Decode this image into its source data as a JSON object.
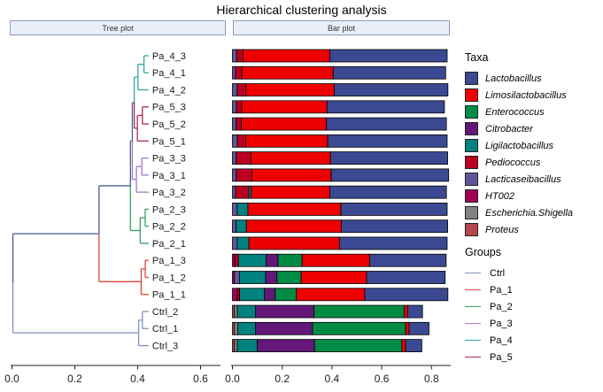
{
  "title": "Hierarchical clustering analysis",
  "panels": {
    "tree_label": "Tree plot",
    "bar_label": "Bar plot"
  },
  "legend": {
    "taxa_title": "Taxa",
    "groups_title": "Groups",
    "taxa": [
      {
        "key": "lactobacillus",
        "label": "Lactobacillus"
      },
      {
        "key": "limosilactobacillus",
        "label": "Limosilactobacillus"
      },
      {
        "key": "enterococcus",
        "label": "Enterococcus"
      },
      {
        "key": "citrobacter",
        "label": "Citrobacter"
      },
      {
        "key": "ligilactobacillus",
        "label": "Ligilactobacillus"
      },
      {
        "key": "pediococcus",
        "label": "Pediococcus"
      },
      {
        "key": "lacticaseibacillus",
        "label": "Lacticaseibacillus"
      },
      {
        "key": "ht002",
        "label": "HT002"
      },
      {
        "key": "escherichia_shigella",
        "label": "Escherichia.Shigella"
      },
      {
        "key": "proteus",
        "label": "Proteus"
      }
    ],
    "groups": [
      {
        "key": "Ctrl",
        "label": "Ctrl"
      },
      {
        "key": "Pa_1",
        "label": "Pa_1"
      },
      {
        "key": "Pa_2",
        "label": "Pa_2"
      },
      {
        "key": "Pa_3",
        "label": "Pa_3"
      },
      {
        "key": "Pa_4",
        "label": "Pa_4"
      },
      {
        "key": "Pa_5",
        "label": "Pa_5"
      }
    ]
  },
  "colors": {
    "spine": "#4A5B92",
    "axis": "#222222",
    "taxa": {
      "lactobacillus": "#3B4992",
      "limosilactobacillus": "#EE0000",
      "enterococcus": "#008B45",
      "citrobacter": "#631879",
      "ligilactobacillus": "#008280",
      "pediococcus": "#BB0021",
      "lacticaseibacillus": "#5F559B",
      "ht002": "#A20056",
      "escherichia_shigella": "#808180",
      "proteus": "#B2474E"
    },
    "groups": {
      "Ctrl": "#8490BE",
      "Pa_1": "#E04438",
      "Pa_2": "#33A05F",
      "Pa_3": "#A678C8",
      "Pa_4": "#2FA89A",
      "Pa_5": "#AE2950"
    }
  },
  "chart_data": [
    {
      "type": "dendrogram",
      "panel": "Tree plot",
      "orientation": "leaves-right",
      "axis": {
        "ticks": [
          "0.0",
          "0.2",
          "0.4",
          "0.6"
        ],
        "range": [
          0,
          0.66
        ]
      },
      "leaf_depth": 0.435,
      "leaves_top_to_bottom": [
        "Pa_4_3",
        "Pa_4_1",
        "Pa_4_2",
        "Pa_5_3",
        "Pa_5_2",
        "Pa_5_1",
        "Pa_3_3",
        "Pa_3_1",
        "Pa_3_2",
        "Pa_2_3",
        "Pa_2_2",
        "Pa_2_1",
        "Pa_1_3",
        "Pa_1_2",
        "Pa_1_1",
        "Ctrl_2",
        "Ctrl_1",
        "Ctrl_3"
      ],
      "root": {
        "h": 0.003,
        "children": [
          {
            "h": 0.277,
            "children": [
              {
                "h": 0.377,
                "children": [
                  {
                    "h": 0.383,
                    "children": [
                      {
                        "h": 0.389,
                        "children": [
                          {
                            "h": 0.401,
                            "group": "Pa_4",
                            "children": [
                              {
                                "h": 0.42,
                                "group": "Pa_4",
                                "children": [
                                  {
                                    "leaf": "Pa_4_3",
                                    "group": "Pa_4"
                                  },
                                  {
                                    "leaf": "Pa_4_1",
                                    "group": "Pa_4"
                                  }
                                ]
                              },
                              {
                                "leaf": "Pa_4_2",
                                "group": "Pa_4"
                              }
                            ]
                          },
                          {
                            "h": 0.399,
                            "group": "Pa_5",
                            "children": [
                              {
                                "h": 0.415,
                                "group": "Pa_5",
                                "children": [
                                  {
                                    "leaf": "Pa_5_3",
                                    "group": "Pa_5"
                                  },
                                  {
                                    "leaf": "Pa_5_2",
                                    "group": "Pa_5"
                                  }
                                ]
                              },
                              {
                                "leaf": "Pa_5_1",
                                "group": "Pa_5"
                              }
                            ]
                          }
                        ]
                      },
                      {
                        "h": 0.396,
                        "group": "Pa_3",
                        "children": [
                          {
                            "h": 0.413,
                            "group": "Pa_3",
                            "children": [
                              {
                                "leaf": "Pa_3_3",
                                "group": "Pa_3"
                              },
                              {
                                "leaf": "Pa_3_1",
                                "group": "Pa_3"
                              }
                            ]
                          },
                          {
                            "leaf": "Pa_3_2",
                            "group": "Pa_3"
                          }
                        ]
                      }
                    ]
                  },
                  {
                    "h": 0.408,
                    "group": "Pa_2",
                    "children": [
                      {
                        "h": 0.424,
                        "group": "Pa_2",
                        "children": [
                          {
                            "leaf": "Pa_2_3",
                            "group": "Pa_2"
                          },
                          {
                            "leaf": "Pa_2_2",
                            "group": "Pa_2"
                          }
                        ]
                      },
                      {
                        "leaf": "Pa_2_1",
                        "group": "Pa_2"
                      }
                    ]
                  }
                ]
              },
              {
                "h": 0.411,
                "group": "Pa_1",
                "children": [
                  {
                    "h": 0.424,
                    "group": "Pa_1",
                    "children": [
                      {
                        "leaf": "Pa_1_3",
                        "group": "Pa_1"
                      },
                      {
                        "leaf": "Pa_1_2",
                        "group": "Pa_1"
                      }
                    ]
                  },
                  {
                    "leaf": "Pa_1_1",
                    "group": "Pa_1"
                  }
                ]
              }
            ]
          },
          {
            "h": 0.403,
            "group": "Ctrl",
            "children": [
              {
                "h": 0.415,
                "group": "Ctrl",
                "children": [
                  {
                    "leaf": "Ctrl_2",
                    "group": "Ctrl"
                  },
                  {
                    "leaf": "Ctrl_1",
                    "group": "Ctrl"
                  }
                ]
              },
              {
                "leaf": "Ctrl_3",
                "group": "Ctrl"
              }
            ]
          }
        ]
      }
    },
    {
      "type": "bar",
      "panel": "Bar plot",
      "stacked": true,
      "xlabel": "",
      "axis": {
        "ticks": [
          "0.0",
          "0.2",
          "0.4",
          "0.6",
          "0.8"
        ],
        "range": [
          0,
          0.88
        ]
      },
      "stack_order": [
        "proteus",
        "escherichia_shigella",
        "ht002",
        "lacticaseibacillus",
        "pediococcus",
        "ligilactobacillus",
        "citrobacter",
        "enterococcus",
        "limosilactobacillus",
        "lactobacillus"
      ],
      "samples": [
        {
          "name": "Pa_4_3",
          "group": "Pa_4",
          "values": {
            "lacticaseibacillus": 0.017,
            "pediococcus": 0.025,
            "limosilactobacillus": 0.349,
            "lactobacillus": 0.472
          }
        },
        {
          "name": "Pa_4_1",
          "group": "Pa_4",
          "values": {
            "lacticaseibacillus": 0.012,
            "pediococcus": 0.026,
            "limosilactobacillus": 0.367,
            "lactobacillus": 0.452
          }
        },
        {
          "name": "Pa_4_2",
          "group": "Pa_4",
          "values": {
            "lacticaseibacillus": 0.019,
            "pediococcus": 0.035,
            "limosilactobacillus": 0.355,
            "lactobacillus": 0.457
          }
        },
        {
          "name": "Pa_5_3",
          "group": "Pa_5",
          "values": {
            "lacticaseibacillus": 0.016,
            "pediococcus": 0.021,
            "limosilactobacillus": 0.343,
            "lactobacillus": 0.472
          }
        },
        {
          "name": "Pa_5_2",
          "group": "Pa_5",
          "values": {
            "lacticaseibacillus": 0.015,
            "pediococcus": 0.021,
            "limosilactobacillus": 0.342,
            "lactobacillus": 0.482
          }
        },
        {
          "name": "Pa_5_1",
          "group": "Pa_5",
          "values": {
            "lacticaseibacillus": 0.02,
            "pediococcus": 0.033,
            "limosilactobacillus": 0.33,
            "lactobacillus": 0.48
          }
        },
        {
          "name": "Pa_3_3",
          "group": "Pa_3",
          "values": {
            "lacticaseibacillus": 0.015,
            "pediococcus": 0.059,
            "limosilactobacillus": 0.32,
            "lactobacillus": 0.471
          }
        },
        {
          "name": "Pa_3_1",
          "group": "Pa_3",
          "values": {
            "lacticaseibacillus": 0.015,
            "pediococcus": 0.063,
            "limosilactobacillus": 0.319,
            "lactobacillus": 0.472
          }
        },
        {
          "name": "Pa_3_2",
          "group": "Pa_3",
          "values": {
            "lacticaseibacillus": 0.012,
            "pediococcus": 0.054,
            "ligilactobacillus": 0.009,
            "limosilactobacillus": 0.316,
            "lactobacillus": 0.469
          }
        },
        {
          "name": "Pa_2_3",
          "group": "Pa_2",
          "values": {
            "lacticaseibacillus": 0.019,
            "ligilactobacillus": 0.043,
            "limosilactobacillus": 0.374,
            "lactobacillus": 0.427
          }
        },
        {
          "name": "Pa_2_2",
          "group": "Pa_2",
          "values": {
            "lacticaseibacillus": 0.015,
            "ligilactobacillus": 0.041,
            "limosilactobacillus": 0.382,
            "lactobacillus": 0.427
          }
        },
        {
          "name": "Pa_2_1",
          "group": "Pa_2",
          "values": {
            "lacticaseibacillus": 0.019,
            "ligilactobacillus": 0.047,
            "limosilactobacillus": 0.364,
            "lactobacillus": 0.433
          }
        },
        {
          "name": "Pa_1_3",
          "group": "Pa_1",
          "values": {
            "ht002": 0.01,
            "pediococcus": 0.014,
            "ligilactobacillus": 0.112,
            "citrobacter": 0.047,
            "enterococcus": 0.097,
            "limosilactobacillus": 0.271,
            "lactobacillus": 0.308
          }
        },
        {
          "name": "Pa_1_2",
          "group": "Pa_1",
          "values": {
            "ht002": 0.008,
            "lacticaseibacillus": 0.021,
            "ligilactobacillus": 0.104,
            "citrobacter": 0.046,
            "enterococcus": 0.097,
            "limosilactobacillus": 0.263,
            "lactobacillus": 0.316
          }
        },
        {
          "name": "Pa_1_1",
          "group": "Pa_1",
          "values": {
            "ht002": 0.02,
            "pediococcus": 0.009,
            "ligilactobacillus": 0.1,
            "citrobacter": 0.043,
            "enterococcus": 0.085,
            "limosilactobacillus": 0.275,
            "lactobacillus": 0.334
          }
        },
        {
          "name": "Ctrl_2",
          "group": "Ctrl",
          "values": {
            "proteus": 0.008,
            "escherichia_shigella": 0.012,
            "ligilactobacillus": 0.073,
            "citrobacter": 0.235,
            "enterococcus": 0.362,
            "limosilactobacillus": 0.014,
            "lactobacillus": 0.06
          }
        },
        {
          "name": "Ctrl_1",
          "group": "Ctrl",
          "values": {
            "proteus": 0.008,
            "escherichia_shigella": 0.014,
            "ligilactobacillus": 0.071,
            "citrobacter": 0.229,
            "enterococcus": 0.374,
            "limosilactobacillus": 0.014,
            "lactobacillus": 0.08
          }
        },
        {
          "name": "Ctrl_3",
          "group": "Ctrl",
          "values": {
            "proteus": 0.008,
            "escherichia_shigella": 0.012,
            "ligilactobacillus": 0.08,
            "citrobacter": 0.23,
            "enterococcus": 0.351,
            "limosilactobacillus": 0.015,
            "lactobacillus": 0.065
          }
        }
      ]
    }
  ]
}
